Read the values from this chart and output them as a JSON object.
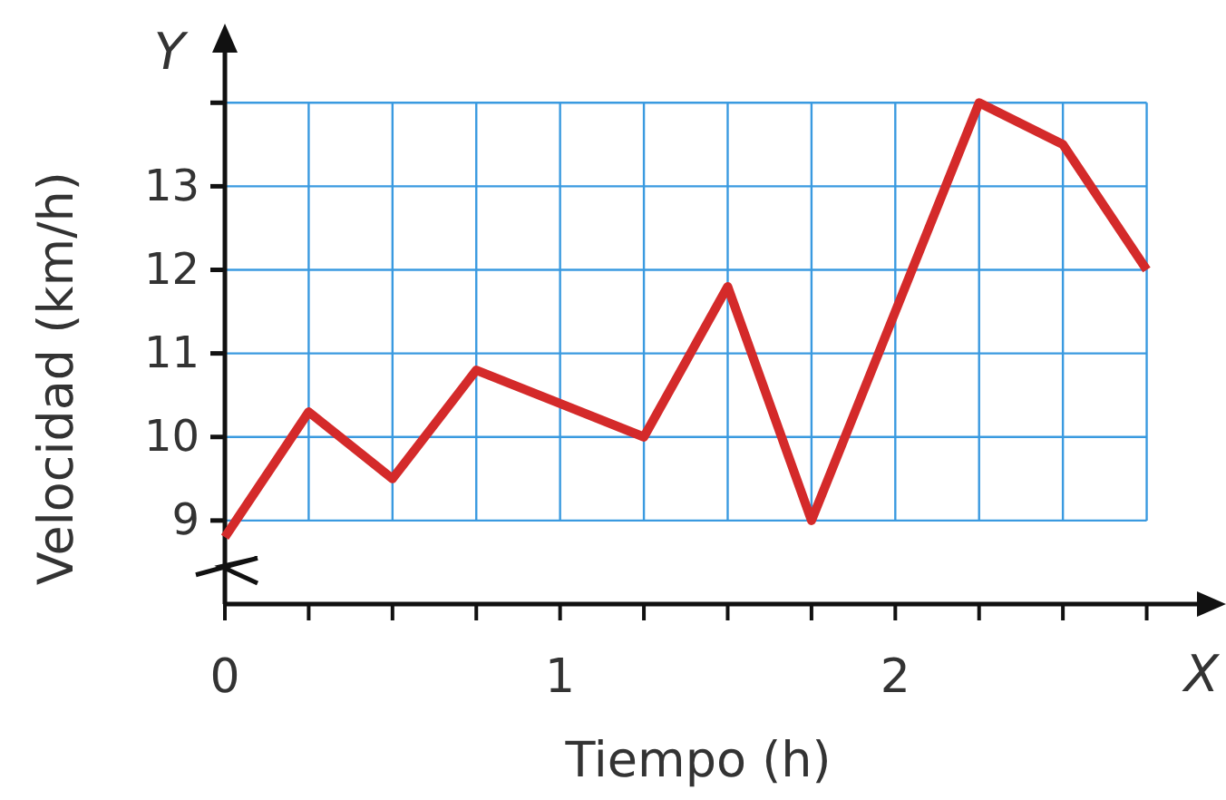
{
  "chart_data": {
    "type": "line",
    "xlabel": "Tiempo (h)",
    "ylabel": "Velocidad (km/h)",
    "annotations": [
      "X",
      "Y"
    ],
    "x": [
      0,
      0.25,
      0.5,
      0.75,
      1,
      1.25,
      1.5,
      1.75,
      2,
      2.25,
      2.5,
      2.75
    ],
    "series": [
      {
        "color": "#d42a2a",
        "values": [
          8.8,
          10.3,
          9.5,
          10.8,
          10.4,
          10.0,
          11.8,
          9.0,
          11.5,
          14.0,
          13.5,
          12.0
        ]
      }
    ],
    "xlim": [
      0,
      2.9
    ],
    "ylim": [
      8,
      14.6
    ],
    "xticks": [
      0,
      {
        "value": 0.25,
        "label": null
      },
      {
        "value": 0.5,
        "label": null
      },
      {
        "value": 0.75,
        "label": null
      },
      1,
      {
        "value": 1.25,
        "label": null
      },
      {
        "value": 1.5,
        "label": null
      },
      {
        "value": 1.75,
        "label": null
      },
      2,
      {
        "value": 2.25,
        "label": null
      },
      {
        "value": 2.5,
        "label": null
      },
      {
        "value": 2.75,
        "label": null
      }
    ],
    "yticks": [
      9,
      10,
      11,
      12,
      13,
      {
        "value": 14,
        "label": null
      }
    ],
    "grid": true,
    "marker": "none",
    "line_style": "solid"
  }
}
